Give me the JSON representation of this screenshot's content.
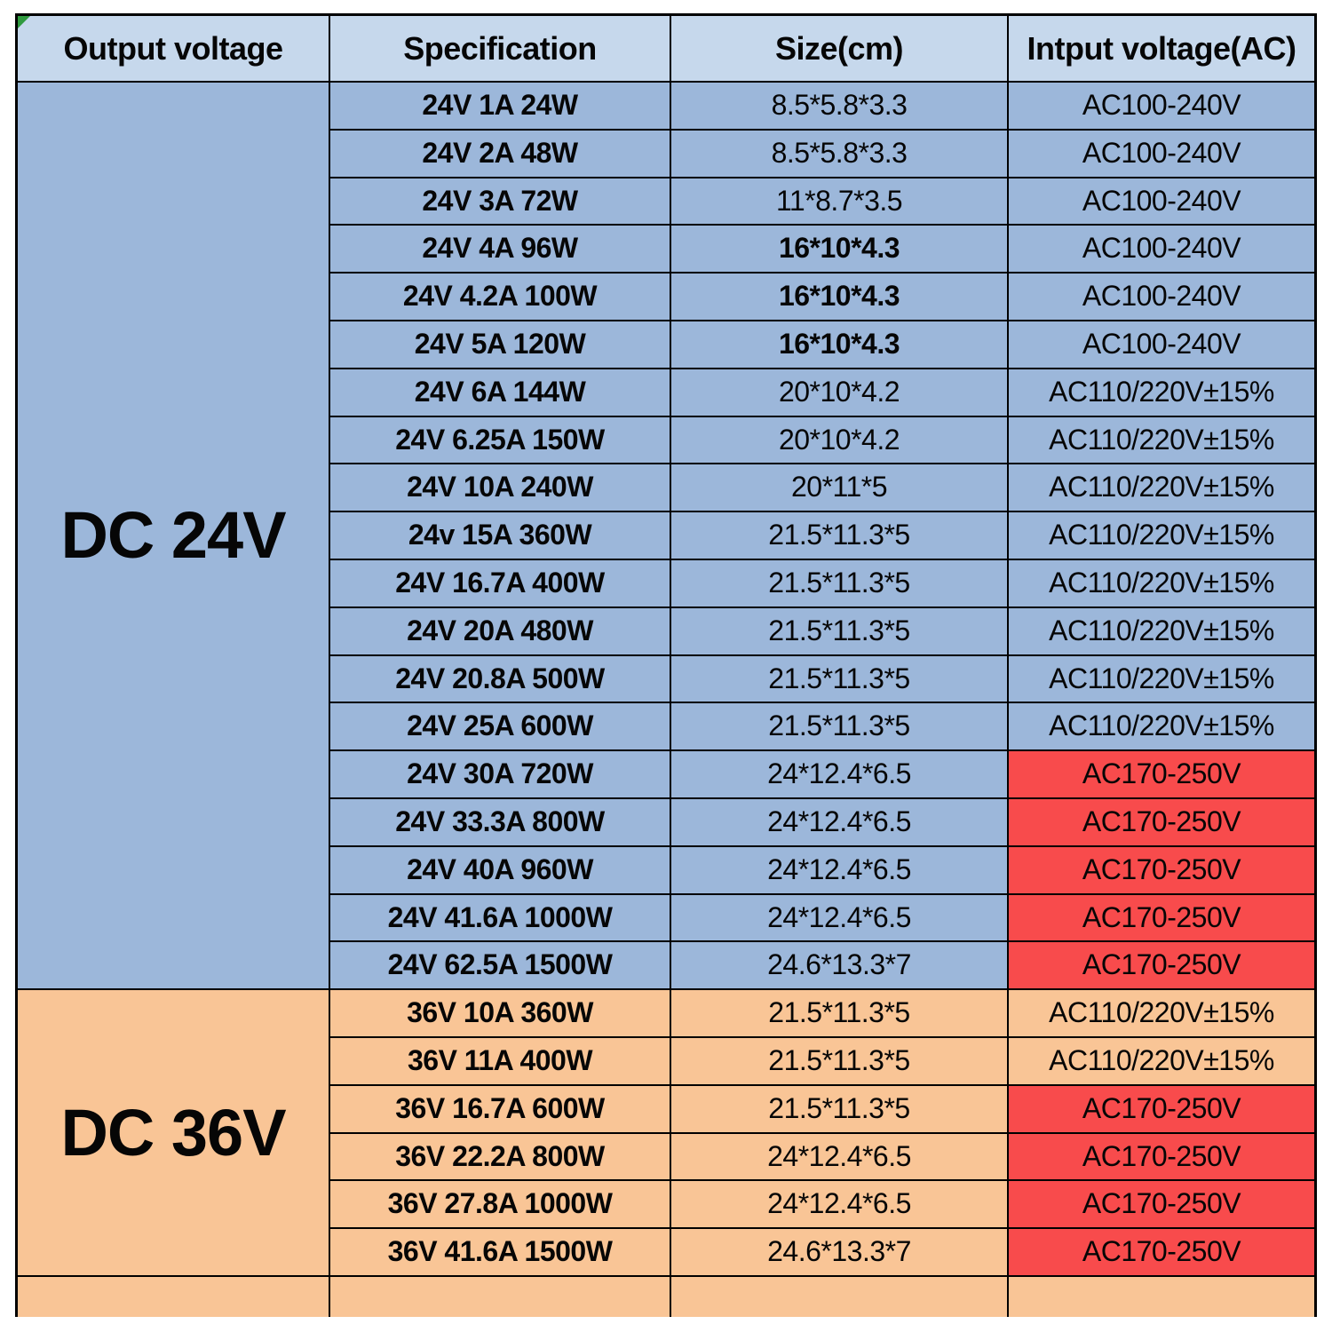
{
  "colors": {
    "page_bg": "#ffffff",
    "header_bg": "#c6d8ec",
    "blue_bg": "#9cb7da",
    "orange_bg": "#f9c596",
    "red_bg": "#f84b4c",
    "border": "#000000",
    "corner_marker_green": "#2f9a3f",
    "text": "#060606"
  },
  "table": {
    "header": {
      "columns": [
        "Output voltage",
        "Specification",
        "Size(cm)",
        "Intput voltage(AC)"
      ]
    },
    "groups": [
      {
        "label": "DC 24V",
        "theme": "blue",
        "rows": [
          {
            "spec": "24V 1A 24W",
            "size": "8.5*5.8*3.3",
            "size_bold": false,
            "input": "AC100-240V",
            "input_highlight": false
          },
          {
            "spec": "24V 2A 48W",
            "size": "8.5*5.8*3.3",
            "size_bold": false,
            "input": "AC100-240V",
            "input_highlight": false
          },
          {
            "spec": "24V 3A 72W",
            "size": "11*8.7*3.5",
            "size_bold": false,
            "input": "AC100-240V",
            "input_highlight": false
          },
          {
            "spec": "24V 4A 96W",
            "size": "16*10*4.3",
            "size_bold": true,
            "input": "AC100-240V",
            "input_highlight": false
          },
          {
            "spec": "24V 4.2A 100W",
            "size": "16*10*4.3",
            "size_bold": true,
            "input": "AC100-240V",
            "input_highlight": false
          },
          {
            "spec": "24V 5A 120W",
            "size": "16*10*4.3",
            "size_bold": true,
            "input": "AC100-240V",
            "input_highlight": false
          },
          {
            "spec": "24V 6A 144W",
            "size": "20*10*4.2",
            "size_bold": false,
            "input": "AC110/220V±15%",
            "input_highlight": false
          },
          {
            "spec": "24V 6.25A 150W",
            "size": "20*10*4.2",
            "size_bold": false,
            "input": "AC110/220V±15%",
            "input_highlight": false
          },
          {
            "spec": "24V 10A 240W",
            "size": "20*11*5",
            "size_bold": false,
            "input": "AC110/220V±15%",
            "input_highlight": false
          },
          {
            "spec": "24v 15A 360W",
            "size": "21.5*11.3*5",
            "size_bold": false,
            "input": "AC110/220V±15%",
            "input_highlight": false
          },
          {
            "spec": "24V 16.7A 400W",
            "size": "21.5*11.3*5",
            "size_bold": false,
            "input": "AC110/220V±15%",
            "input_highlight": false
          },
          {
            "spec": "24V 20A 480W",
            "size": "21.5*11.3*5",
            "size_bold": false,
            "input": "AC110/220V±15%",
            "input_highlight": false
          },
          {
            "spec": "24V 20.8A 500W",
            "size": "21.5*11.3*5",
            "size_bold": false,
            "input": "AC110/220V±15%",
            "input_highlight": false
          },
          {
            "spec": "24V 25A 600W",
            "size": "21.5*11.3*5",
            "size_bold": false,
            "input": "AC110/220V±15%",
            "input_highlight": false
          },
          {
            "spec": "24V 30A 720W",
            "size": "24*12.4*6.5",
            "size_bold": false,
            "input": "AC170-250V",
            "input_highlight": true
          },
          {
            "spec": "24V 33.3A 800W",
            "size": "24*12.4*6.5",
            "size_bold": false,
            "input": "AC170-250V",
            "input_highlight": true
          },
          {
            "spec": "24V 40A 960W",
            "size": "24*12.4*6.5",
            "size_bold": false,
            "input": "AC170-250V",
            "input_highlight": true
          },
          {
            "spec": "24V 41.6A 1000W",
            "size": "24*12.4*6.5",
            "size_bold": false,
            "input": "AC170-250V",
            "input_highlight": true
          },
          {
            "spec": "24V 62.5A 1500W",
            "size": "24.6*13.3*7",
            "size_bold": false,
            "input": "AC170-250V",
            "input_highlight": true
          }
        ]
      },
      {
        "label": "DC 36V",
        "theme": "orange",
        "rows": [
          {
            "spec": "36V 10A 360W",
            "size": "21.5*11.3*5",
            "size_bold": false,
            "input": "AC110/220V±15%",
            "input_highlight": false
          },
          {
            "spec": "36V 11A 400W",
            "size": "21.5*11.3*5",
            "size_bold": false,
            "input": "AC110/220V±15%",
            "input_highlight": false
          },
          {
            "spec": "36V 16.7A 600W",
            "size": "21.5*11.3*5",
            "size_bold": false,
            "input": "AC170-250V",
            "input_highlight": true
          },
          {
            "spec": "36V 22.2A 800W",
            "size": "24*12.4*6.5",
            "size_bold": false,
            "input": "AC170-250V",
            "input_highlight": true
          },
          {
            "spec": "36V 27.8A 1000W",
            "size": "24*12.4*6.5",
            "size_bold": false,
            "input": "AC170-250V",
            "input_highlight": true
          },
          {
            "spec": "36V 41.6A 1500W",
            "size": "24.6*13.3*7",
            "size_bold": false,
            "input": "AC170-250V",
            "input_highlight": true
          }
        ]
      }
    ],
    "trailing_empty_row": true
  },
  "chart_data": {
    "type": "table",
    "title": "",
    "columns": [
      "Output voltage",
      "Specification",
      "Size(cm)",
      "Intput voltage(AC)"
    ],
    "rows": [
      [
        "DC 24V",
        "24V 1A 24W",
        "8.5*5.8*3.3",
        "AC100-240V"
      ],
      [
        "DC 24V",
        "24V 2A 48W",
        "8.5*5.8*3.3",
        "AC100-240V"
      ],
      [
        "DC 24V",
        "24V 3A 72W",
        "11*8.7*3.5",
        "AC100-240V"
      ],
      [
        "DC 24V",
        "24V 4A 96W",
        "16*10*4.3",
        "AC100-240V"
      ],
      [
        "DC 24V",
        "24V 4.2A 100W",
        "16*10*4.3",
        "AC100-240V"
      ],
      [
        "DC 24V",
        "24V 5A 120W",
        "16*10*4.3",
        "AC100-240V"
      ],
      [
        "DC 24V",
        "24V 6A 144W",
        "20*10*4.2",
        "AC110/220V±15%"
      ],
      [
        "DC 24V",
        "24V 6.25A 150W",
        "20*10*4.2",
        "AC110/220V±15%"
      ],
      [
        "DC 24V",
        "24V 10A 240W",
        "20*11*5",
        "AC110/220V±15%"
      ],
      [
        "DC 24V",
        "24v 15A 360W",
        "21.5*11.3*5",
        "AC110/220V±15%"
      ],
      [
        "DC 24V",
        "24V 16.7A 400W",
        "21.5*11.3*5",
        "AC110/220V±15%"
      ],
      [
        "DC 24V",
        "24V 20A 480W",
        "21.5*11.3*5",
        "AC110/220V±15%"
      ],
      [
        "DC 24V",
        "24V 20.8A 500W",
        "21.5*11.3*5",
        "AC110/220V±15%"
      ],
      [
        "DC 24V",
        "24V 25A 600W",
        "21.5*11.3*5",
        "AC110/220V±15%"
      ],
      [
        "DC 24V",
        "24V 30A 720W",
        "24*12.4*6.5",
        "AC170-250V"
      ],
      [
        "DC 24V",
        "24V 33.3A 800W",
        "24*12.4*6.5",
        "AC170-250V"
      ],
      [
        "DC 24V",
        "24V 40A 960W",
        "24*12.4*6.5",
        "AC170-250V"
      ],
      [
        "DC 24V",
        "24V 41.6A 1000W",
        "24*12.4*6.5",
        "AC170-250V"
      ],
      [
        "DC 24V",
        "24V 62.5A 1500W",
        "24.6*13.3*7",
        "AC170-250V"
      ],
      [
        "DC 36V",
        "36V 10A 360W",
        "21.5*11.3*5",
        "AC110/220V±15%"
      ],
      [
        "DC 36V",
        "36V 11A 400W",
        "21.5*11.3*5",
        "AC110/220V±15%"
      ],
      [
        "DC 36V",
        "36V 16.7A 600W",
        "21.5*11.3*5",
        "AC170-250V"
      ],
      [
        "DC 36V",
        "36V 22.2A 800W",
        "24*12.4*6.5",
        "AC170-250V"
      ],
      [
        "DC 36V",
        "36V 27.8A 1000W",
        "24*12.4*6.5",
        "AC170-250V"
      ],
      [
        "DC 36V",
        "36V 41.6A 1500W",
        "24.6*13.3*7",
        "AC170-250V"
      ]
    ],
    "highlight_note": "AC170-250V cells have red background; other cells blue (DC 24V group) or orange (DC 36V group)"
  }
}
